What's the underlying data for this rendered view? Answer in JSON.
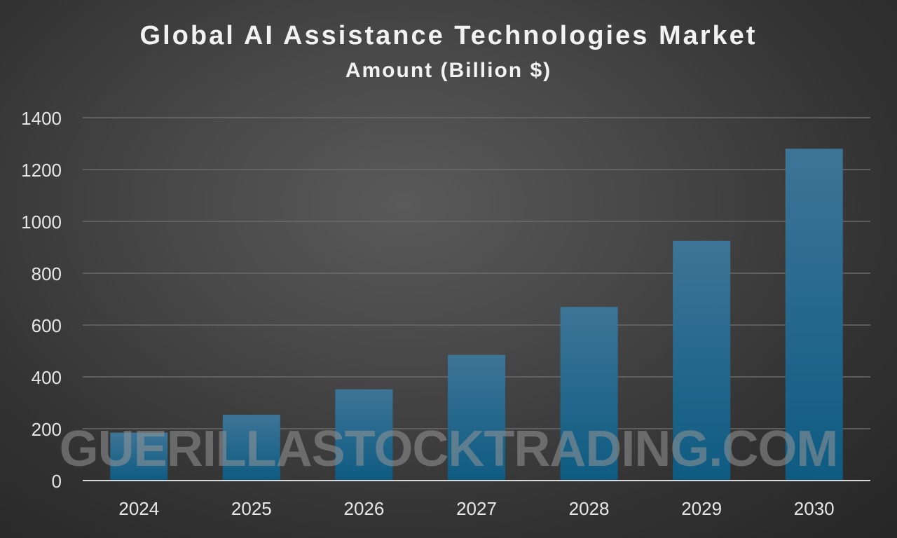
{
  "chart_data": {
    "type": "bar",
    "title": "Global AI Assistance Technologies Market",
    "subtitle": "Amount (Billion $)",
    "xlabel": "",
    "ylabel": "",
    "categories": [
      "2024",
      "2025",
      "2026",
      "2027",
      "2028",
      "2029",
      "2030"
    ],
    "values": [
      185,
      254,
      352,
      485,
      670,
      925,
      1280
    ],
    "ylim": [
      0,
      1400
    ],
    "yticks": [
      "0",
      "200",
      "400",
      "600",
      "800",
      "1000",
      "1200",
      "1400"
    ],
    "grid": true,
    "legend": "none",
    "bar_color_top": "#3d7597",
    "bar_color_bottom": "#0e5b82"
  },
  "watermark": "GUERILLASTOCKTRADING.COM"
}
